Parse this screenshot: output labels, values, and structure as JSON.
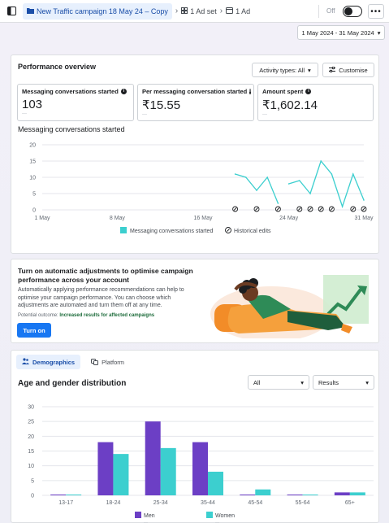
{
  "topbar": {
    "campaign_label": "New Traffic campaign 18 May 24 – Copy",
    "adset_label": "1 Ad set",
    "ad_label": "1 Ad",
    "status_label": "Off",
    "more_label": "•••"
  },
  "date_range": {
    "label": "1 May 2024 - 31 May 2024"
  },
  "performance": {
    "title": "Performance overview",
    "activity_button": "Activity types: All",
    "customise_button": "Customise",
    "kpis": [
      {
        "label": "Messaging conversations started",
        "value": "103",
        "sub": "—"
      },
      {
        "label": "Per messaging conversation started",
        "value": "₹15.55",
        "sub": "—"
      },
      {
        "label": "Amount spent",
        "value": "₹1,602.14",
        "sub": "—"
      }
    ],
    "chart_title": "Messaging conversations started"
  },
  "chart_data": [
    {
      "type": "line",
      "title": "Messaging conversations started",
      "x_tick_labels": [
        "1 May",
        "8 May",
        "16 May",
        "24 May",
        "31 May"
      ],
      "x_ticks_day": [
        1,
        8,
        16,
        24,
        31
      ],
      "y_ticks": [
        0,
        5,
        10,
        15,
        20
      ],
      "ylim": [
        0,
        20
      ],
      "xlim": [
        1,
        31
      ],
      "series": [
        {
          "name": "Messaging conversations started",
          "color": "#3ccfcf",
          "segments": [
            [
              [
                19,
                11
              ],
              [
                20,
                10
              ],
              [
                21,
                6
              ],
              [
                22,
                10
              ],
              [
                23,
                2
              ]
            ],
            [
              [
                24,
                8
              ],
              [
                25,
                9
              ],
              [
                26,
                5
              ],
              [
                27,
                15
              ],
              [
                28,
                11
              ],
              [
                29,
                1
              ],
              [
                30,
                11
              ],
              [
                31,
                3
              ]
            ]
          ]
        }
      ],
      "historical_edit_days": [
        19,
        21,
        23,
        25,
        26,
        27,
        28,
        30,
        31
      ],
      "legend": [
        {
          "label": "Messaging conversations started",
          "marker": "square",
          "color": "#3ccfcf"
        },
        {
          "label": "Historical edits",
          "marker": "edit-icon",
          "color": "#1c1e21"
        }
      ],
      "grid": true
    },
    {
      "type": "bar",
      "title": "Age and gender distribution",
      "categories": [
        "13-17",
        "18-24",
        "25-34",
        "35-44",
        "45-54",
        "55-64",
        "65+"
      ],
      "ylim": [
        0,
        30
      ],
      "y_ticks": [
        0,
        5,
        10,
        15,
        20,
        25,
        30
      ],
      "series": [
        {
          "name": "Men",
          "color": "#6c3fc5",
          "values": [
            0,
            18,
            25,
            18,
            0,
            0,
            1
          ]
        },
        {
          "name": "Women",
          "color": "#3ccfcf",
          "values": [
            0,
            14,
            16,
            8,
            2,
            0,
            1
          ]
        }
      ],
      "legend_sub": [
        "—",
        "—"
      ],
      "grid": true
    }
  ],
  "adjustments": {
    "title": "Turn on automatic adjustments to optimise campaign performance across your account",
    "body": "Automatically applying performance recommendations can help to optimise your campaign performance. You can choose which adjustments are automated and turn them off at any time.",
    "outcome_prefix": "Potential outcome:",
    "outcome_value": "Increased results for affected campaigns",
    "button": "Turn on"
  },
  "demographics": {
    "tab_demographics": "Demographics",
    "tab_platform": "Platform",
    "title": "Age and gender distribution",
    "filter_all": "All",
    "filter_results": "Results"
  },
  "colors": {
    "accent": "#1877f2",
    "men": "#6c3fc5",
    "women": "#3ccfcf"
  }
}
